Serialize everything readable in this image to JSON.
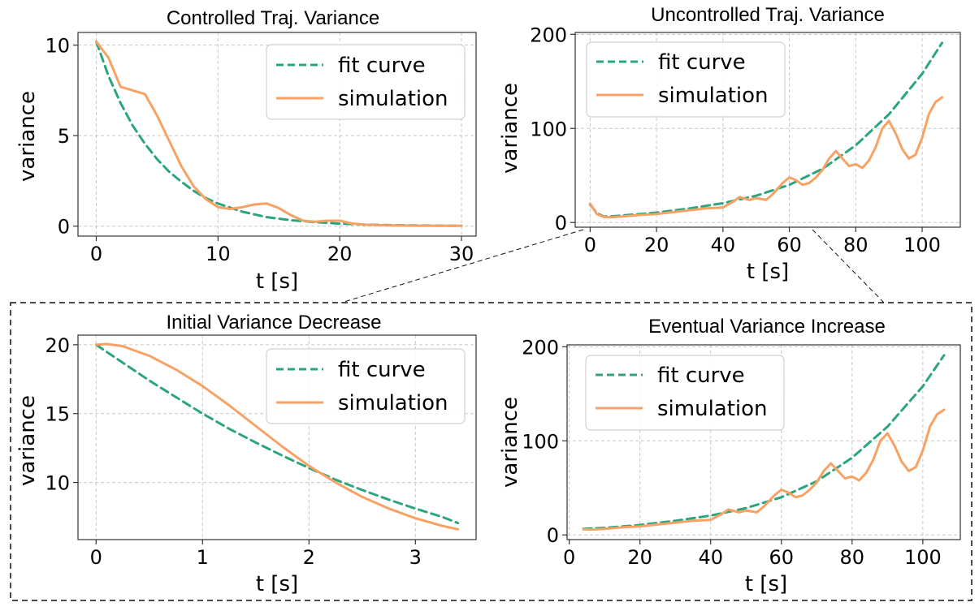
{
  "colors": {
    "fit": "#2ca57f",
    "sim": "#f7a264",
    "grid": "#c8c8c8",
    "axis": "#333333"
  },
  "chart_data": [
    {
      "id": "controlled",
      "type": "line",
      "title": "Controlled Traj. Variance",
      "xlabel": "t [s]",
      "ylabel": "variance",
      "xlim": [
        -1.5,
        31.2
      ],
      "ylim": [
        -0.55,
        10.7
      ],
      "xticks": [
        0,
        10,
        20,
        30
      ],
      "yticks": [
        0,
        5,
        10
      ],
      "xtick_labels": [
        "0",
        "10",
        "20",
        "30"
      ],
      "ytick_labels": [
        "0",
        "5",
        "10"
      ],
      "grid": true,
      "legend": "top-right",
      "series": [
        {
          "name": "fit curve",
          "style": "dashed",
          "color": "#2ca57f",
          "x": [
            0,
            1,
            2,
            3,
            4,
            5,
            6,
            7,
            8,
            9,
            10,
            12,
            14,
            16,
            18,
            20,
            22,
            24,
            26,
            28,
            30
          ],
          "y": [
            10.2,
            8.3,
            6.8,
            5.55,
            4.55,
            3.7,
            3.0,
            2.45,
            1.95,
            1.55,
            1.25,
            0.8,
            0.5,
            0.33,
            0.22,
            0.14,
            0.09,
            0.06,
            0.04,
            0.03,
            0.02
          ]
        },
        {
          "name": "simulation",
          "style": "solid",
          "color": "#f7a264",
          "x": [
            0,
            1,
            2,
            3,
            4,
            5,
            6,
            7,
            8,
            9,
            10,
            11,
            12,
            13,
            14,
            15,
            16,
            17,
            18,
            19,
            20,
            21,
            22,
            24,
            26,
            28,
            30
          ],
          "y": [
            10.2,
            9.3,
            7.7,
            7.5,
            7.3,
            6.1,
            4.7,
            3.3,
            2.2,
            1.5,
            1.05,
            0.95,
            1.05,
            1.2,
            1.25,
            1.0,
            0.6,
            0.3,
            0.25,
            0.3,
            0.3,
            0.15,
            0.08,
            0.04,
            0.03,
            0.02,
            0.02
          ]
        }
      ]
    },
    {
      "id": "uncontrolled",
      "type": "line",
      "title": "Uncontrolled Traj. Variance",
      "xlabel": "t [s]",
      "ylabel": "variance",
      "xlim": [
        -4.5,
        111.5
      ],
      "ylim": [
        -5,
        202
      ],
      "xticks": [
        0,
        20,
        40,
        60,
        80,
        100
      ],
      "yticks": [
        0,
        100,
        200
      ],
      "xtick_labels": [
        "0",
        "20",
        "40",
        "60",
        "80",
        "100"
      ],
      "ytick_labels": [
        "0",
        "100",
        "200"
      ],
      "grid": true,
      "legend": "top-left",
      "series": [
        {
          "name": "fit curve",
          "style": "dashed",
          "color": "#2ca57f",
          "x": [
            0,
            2,
            4,
            6,
            10,
            20,
            30,
            40,
            50,
            60,
            70,
            80,
            90,
            100,
            106
          ],
          "y": [
            19,
            10,
            6.5,
            6.5,
            7.5,
            10.5,
            15,
            20.5,
            28.5,
            40,
            57,
            82,
            115,
            158,
            191
          ]
        },
        {
          "name": "simulation",
          "style": "solid",
          "color": "#f7a264",
          "x": [
            0,
            2,
            4,
            6,
            10,
            15,
            20,
            25,
            30,
            35,
            40,
            43,
            45,
            48,
            50,
            53,
            55,
            58,
            60,
            62,
            64,
            66,
            68,
            70,
            72,
            74,
            76,
            78,
            80,
            82,
            84,
            86,
            88,
            90,
            92,
            94,
            96,
            98,
            100,
            102,
            104,
            106
          ],
          "y": [
            20,
            9,
            6,
            5.5,
            6.5,
            8,
            9,
            11,
            13,
            15,
            16,
            22,
            27,
            24,
            26,
            24,
            30,
            42,
            48,
            45,
            40,
            42,
            48,
            56,
            68,
            76,
            68,
            60,
            62,
            58,
            66,
            80,
            100,
            108,
            95,
            78,
            68,
            72,
            90,
            115,
            128,
            133
          ]
        }
      ]
    },
    {
      "id": "initial",
      "type": "line",
      "title": "Initial Variance Decrease",
      "xlabel": "t [s]",
      "ylabel": "variance",
      "xlim": [
        -0.17,
        3.57
      ],
      "ylim": [
        5.85,
        20.7
      ],
      "xticks": [
        0,
        1,
        2,
        3
      ],
      "yticks": [
        10,
        15,
        20
      ],
      "xtick_labels": [
        "0",
        "1",
        "2",
        "3"
      ],
      "ytick_labels": [
        "10",
        "15",
        "20"
      ],
      "grid": true,
      "legend": "top-right",
      "series": [
        {
          "name": "fit curve",
          "style": "dashed",
          "color": "#2ca57f",
          "x": [
            0,
            0.25,
            0.5,
            0.75,
            1,
            1.25,
            1.5,
            1.75,
            2,
            2.25,
            2.5,
            2.75,
            3,
            3.25,
            3.4
          ],
          "y": [
            20,
            18.7,
            17.4,
            16.2,
            15.0,
            13.9,
            12.9,
            11.95,
            11.05,
            10.2,
            9.45,
            8.75,
            8.1,
            7.5,
            7.05
          ]
        },
        {
          "name": "simulation",
          "style": "solid",
          "color": "#f7a264",
          "x": [
            0,
            0.1,
            0.25,
            0.5,
            0.75,
            1,
            1.25,
            1.5,
            1.75,
            2,
            2.25,
            2.5,
            2.75,
            3,
            3.25,
            3.4
          ],
          "y": [
            20,
            20.05,
            19.9,
            19.2,
            18.2,
            17.0,
            15.6,
            14.1,
            12.6,
            11.2,
            10.0,
            8.95,
            8.1,
            7.4,
            6.85,
            6.6
          ]
        }
      ]
    },
    {
      "id": "eventual",
      "type": "line",
      "title": "Eventual Variance Increase",
      "xlabel": "t [s]",
      "ylabel": "variance",
      "xlim": [
        -0.6,
        110.6
      ],
      "ylim": [
        -5,
        202
      ],
      "xticks": [
        0,
        20,
        40,
        60,
        80,
        100
      ],
      "yticks": [
        0,
        100,
        200
      ],
      "xtick_labels": [
        "0",
        "20",
        "40",
        "60",
        "80",
        "100"
      ],
      "ytick_labels": [
        "0",
        "100",
        "200"
      ],
      "grid": true,
      "legend": "top-left",
      "series": [
        {
          "name": "fit curve",
          "style": "dashed",
          "color": "#2ca57f",
          "x": [
            4,
            10,
            20,
            30,
            40,
            50,
            60,
            70,
            80,
            90,
            100,
            106
          ],
          "y": [
            6.5,
            7.5,
            10.5,
            15,
            20.5,
            28.5,
            40,
            57,
            82,
            115,
            158,
            191
          ]
        },
        {
          "name": "simulation",
          "style": "solid",
          "color": "#f7a264",
          "x": [
            4,
            6,
            10,
            15,
            20,
            25,
            30,
            35,
            40,
            43,
            45,
            48,
            50,
            53,
            55,
            58,
            60,
            62,
            64,
            66,
            68,
            70,
            72,
            74,
            76,
            78,
            80,
            82,
            84,
            86,
            88,
            90,
            92,
            94,
            96,
            98,
            100,
            102,
            104,
            106
          ],
          "y": [
            6,
            5.5,
            6.5,
            8,
            9,
            11,
            13,
            15,
            16,
            22,
            27,
            24,
            26,
            24,
            30,
            42,
            48,
            45,
            40,
            42,
            48,
            56,
            68,
            76,
            68,
            60,
            62,
            58,
            66,
            80,
            100,
            108,
            95,
            78,
            68,
            72,
            90,
            115,
            128,
            133
          ]
        }
      ]
    }
  ]
}
